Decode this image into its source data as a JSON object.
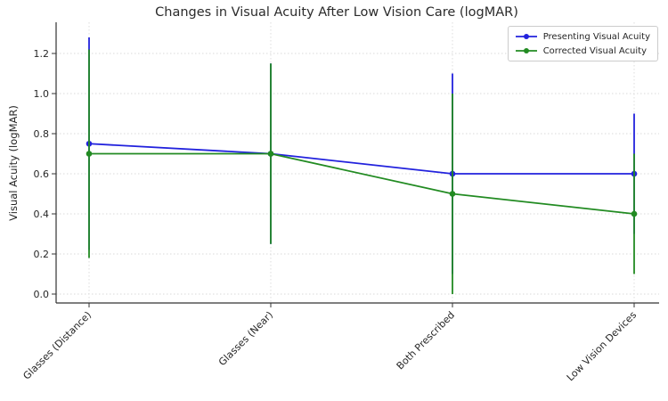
{
  "title": "Changes in Visual Acuity After Low Vision Care (logMAR)",
  "chart_data": {
    "type": "line",
    "title": "Changes in Visual Acuity After Low Vision Care (logMAR)",
    "xlabel": "",
    "ylabel": "Visual Acuity (logMAR)",
    "categories": [
      "Glasses (Distance)",
      "Glasses (Near)",
      "Both Prescribed",
      "Low Vision Devices"
    ],
    "series": [
      {
        "name": "Presenting Visual Acuity",
        "color": "#2222dd",
        "values": [
          0.75,
          0.7,
          0.6,
          0.6
        ],
        "error": [
          0.53,
          0.45,
          0.5,
          0.3
        ]
      },
      {
        "name": "Corrected Visual Acuity",
        "color": "#228b22",
        "values": [
          0.7,
          0.7,
          0.5,
          0.4
        ],
        "error": [
          0.52,
          0.45,
          0.5,
          0.3
        ]
      }
    ],
    "yticks": [
      "0.0",
      "0.2",
      "0.4",
      "0.6",
      "0.8",
      "1.0",
      "1.2"
    ],
    "ylim": [
      -0.05,
      1.36
    ],
    "grid": true,
    "grid_style": "dotted",
    "legend_position": "upper right",
    "marker": "circle",
    "errorbar_caps": false,
    "axis_color": "#333333",
    "grid_color": "#d9d9d9",
    "text_color": "#262626"
  }
}
